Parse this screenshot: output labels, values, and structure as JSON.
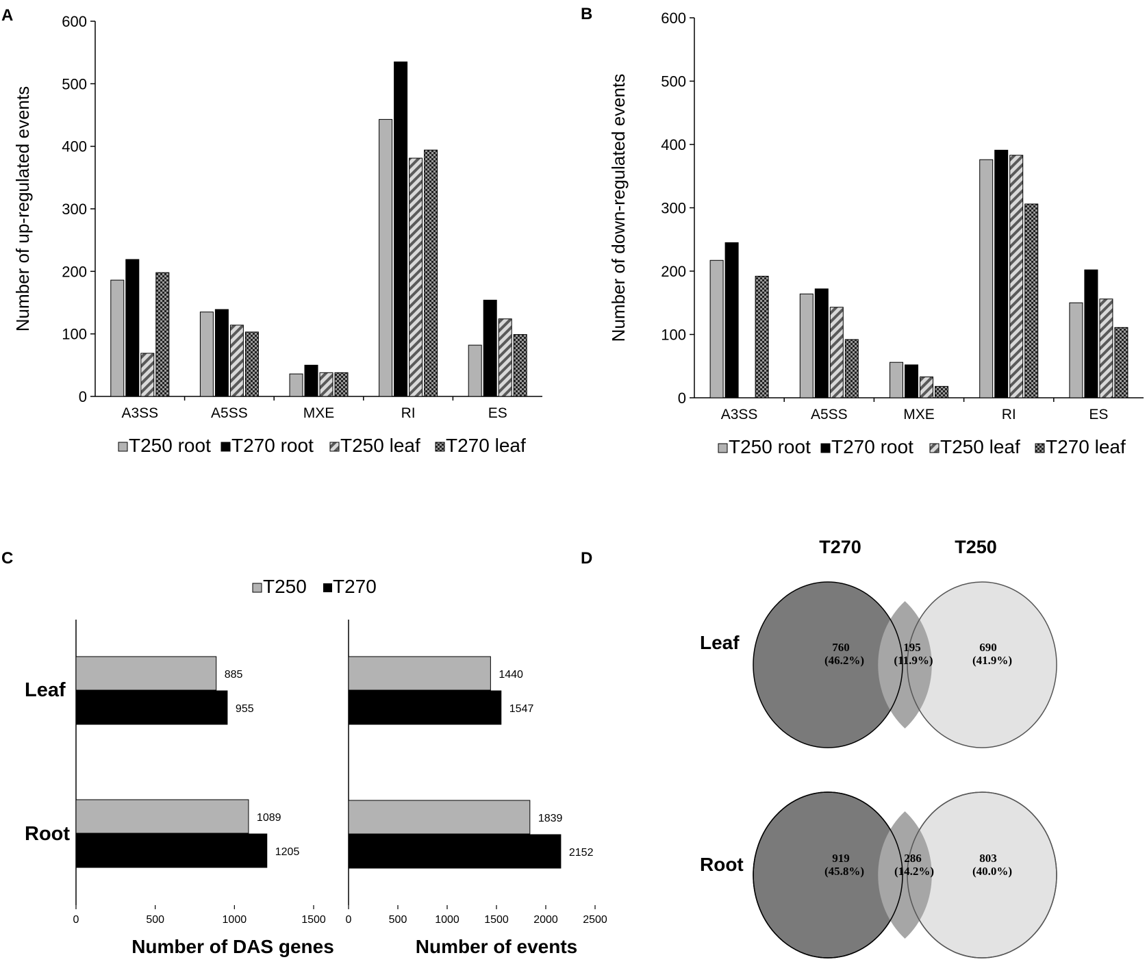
{
  "panels": {
    "A": "A",
    "B": "B",
    "C": "C",
    "D": "D"
  },
  "colors": {
    "t250_root": "#b3b3b3",
    "t270_root": "#000000",
    "t250": "#b3b3b3",
    "t270": "#000000",
    "venn_t270": "#7a7a7a",
    "venn_t250": "#e3e3e3",
    "venn_overlap": "#a6a6a6"
  },
  "legend_ab": [
    "T250 root",
    "T270 root",
    "T250 leaf",
    "T270 leaf"
  ],
  "legend_c": [
    "T250",
    "T270"
  ],
  "chart_data": [
    {
      "panel": "A",
      "type": "bar",
      "title": "",
      "xlabel": "",
      "ylabel": "Number of up-regulated events",
      "ylim": [
        0,
        600
      ],
      "yticks": [
        0,
        100,
        200,
        300,
        400,
        500,
        600
      ],
      "categories": [
        "A3SS",
        "A5SS",
        "MXE",
        "RI",
        "ES"
      ],
      "series": [
        {
          "name": "T250 root",
          "values": [
            186,
            135,
            36,
            443,
            82
          ]
        },
        {
          "name": "T270 root",
          "values": [
            219,
            139,
            50,
            535,
            154
          ]
        },
        {
          "name": "T250 leaf",
          "values": [
            69,
            114,
            38,
            381,
            124
          ]
        },
        {
          "name": "T270 leaf",
          "values": [
            198,
            103,
            38,
            394,
            99
          ]
        }
      ]
    },
    {
      "panel": "B",
      "type": "bar",
      "title": "",
      "xlabel": "",
      "ylabel": "Number of down-regulated events",
      "ylim": [
        0,
        600
      ],
      "yticks": [
        0,
        100,
        200,
        300,
        400,
        500,
        600
      ],
      "categories": [
        "A3SS",
        "A5SS",
        "MXE",
        "RI",
        "ES"
      ],
      "series": [
        {
          "name": "T250 root",
          "values": [
            217,
            164,
            56,
            376,
            150
          ]
        },
        {
          "name": "T270 root",
          "values": [
            245,
            172,
            52,
            391,
            202
          ]
        },
        {
          "name": "T250 leaf",
          "values": [
            0,
            143,
            33,
            383,
            156
          ]
        },
        {
          "name": "T270 leaf",
          "values": [
            192,
            92,
            18,
            306,
            111
          ]
        }
      ]
    },
    {
      "panel": "C-left",
      "type": "bar",
      "orientation": "horizontal",
      "xlabel": "Number of DAS genes",
      "xlim": [
        0,
        1500
      ],
      "xticks": [
        0,
        500,
        1000,
        1500
      ],
      "categories": [
        "Leaf",
        "Root"
      ],
      "series": [
        {
          "name": "T250",
          "values": [
            885,
            1089
          ]
        },
        {
          "name": "T270",
          "values": [
            955,
            1205
          ]
        }
      ]
    },
    {
      "panel": "C-right",
      "type": "bar",
      "orientation": "horizontal",
      "xlabel": "Number of events",
      "xlim": [
        0,
        2500
      ],
      "xticks": [
        0,
        500,
        1000,
        1500,
        2000,
        2500
      ],
      "categories": [
        "Leaf",
        "Root"
      ],
      "series": [
        {
          "name": "T250",
          "values": [
            1440,
            1839
          ]
        },
        {
          "name": "T270",
          "values": [
            1547,
            2152
          ]
        }
      ]
    },
    {
      "panel": "D",
      "type": "venn",
      "set_labels": [
        "T270",
        "T250"
      ],
      "rows": [
        {
          "label": "Leaf",
          "t270_only": {
            "count": "760",
            "pct": "(46.2%)"
          },
          "overlap": {
            "count": "195",
            "pct": "(11.9%)"
          },
          "t250_only": {
            "count": "690",
            "pct": "(41.9%)"
          }
        },
        {
          "label": "Root",
          "t270_only": {
            "count": "919",
            "pct": "(45.8%)"
          },
          "overlap": {
            "count": "286",
            "pct": "(14.2%)"
          },
          "t250_only": {
            "count": "803",
            "pct": "(40.0%)"
          }
        }
      ]
    }
  ]
}
